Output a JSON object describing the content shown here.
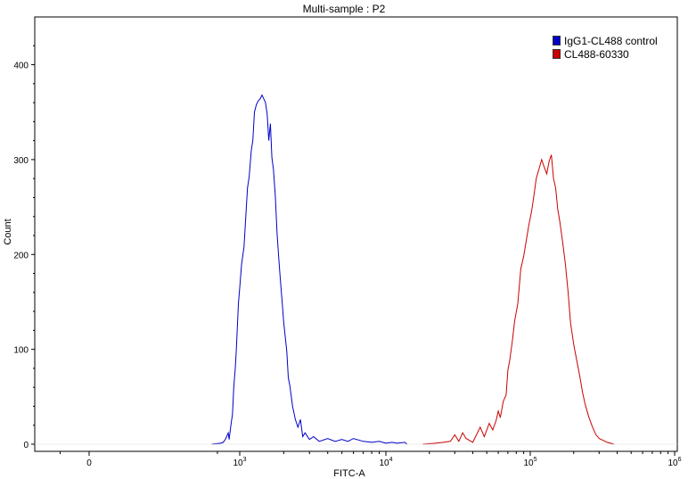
{
  "chart_data": {
    "type": "line",
    "title": "Multi-sample : P2",
    "xlabel": "FITC-A",
    "ylabel": "Count",
    "xscale": "biexponential",
    "xlim": [
      -1200,
      1000000
    ],
    "ylim": [
      0,
      440
    ],
    "x_ticks": [
      {
        "value": 0,
        "label": "0",
        "exp": ""
      },
      {
        "value": 1000,
        "label": "10",
        "exp": "3"
      },
      {
        "value": 10000,
        "label": "10",
        "exp": "4"
      },
      {
        "value": 100000,
        "label": "10",
        "exp": "5"
      },
      {
        "value": 1000000,
        "label": "10",
        "exp": "6"
      }
    ],
    "y_ticks": [
      0,
      100,
      200,
      300,
      400
    ],
    "grid": false,
    "legend_position": "top-right",
    "series": [
      {
        "name": "IgG1-CL488 control",
        "color": "#0000c8",
        "points": [
          [
            420,
            0
          ],
          [
            550,
            1
          ],
          [
            600,
            2
          ],
          [
            650,
            6
          ],
          [
            700,
            12
          ],
          [
            720,
            5
          ],
          [
            760,
            20
          ],
          [
            800,
            32
          ],
          [
            830,
            60
          ],
          [
            870,
            80
          ],
          [
            900,
            100
          ],
          [
            930,
            125
          ],
          [
            960,
            148
          ],
          [
            1000,
            165
          ],
          [
            1030,
            190
          ],
          [
            1070,
            208
          ],
          [
            1100,
            240
          ],
          [
            1130,
            270
          ],
          [
            1160,
            282
          ],
          [
            1200,
            310
          ],
          [
            1230,
            320
          ],
          [
            1260,
            350
          ],
          [
            1300,
            358
          ],
          [
            1340,
            362
          ],
          [
            1380,
            364
          ],
          [
            1420,
            368
          ],
          [
            1460,
            364
          ],
          [
            1500,
            360
          ],
          [
            1540,
            348
          ],
          [
            1580,
            320
          ],
          [
            1620,
            338
          ],
          [
            1660,
            302
          ],
          [
            1700,
            290
          ],
          [
            1750,
            262
          ],
          [
            1800,
            222
          ],
          [
            1850,
            196
          ],
          [
            1900,
            172
          ],
          [
            1950,
            150
          ],
          [
            2000,
            128
          ],
          [
            2100,
            98
          ],
          [
            2150,
            70
          ],
          [
            2200,
            62
          ],
          [
            2300,
            40
          ],
          [
            2400,
            26
          ],
          [
            2500,
            18
          ],
          [
            2600,
            26
          ],
          [
            2700,
            8
          ],
          [
            2800,
            12
          ],
          [
            3000,
            5
          ],
          [
            3200,
            8
          ],
          [
            3500,
            3
          ],
          [
            4000,
            6
          ],
          [
            4500,
            3
          ],
          [
            5000,
            5
          ],
          [
            5500,
            3
          ],
          [
            6000,
            6
          ],
          [
            7000,
            3
          ],
          [
            8000,
            2
          ],
          [
            9000,
            3
          ],
          [
            10000,
            1
          ],
          [
            11000,
            2
          ],
          [
            12000,
            1
          ],
          [
            13500,
            2
          ],
          [
            14000,
            0
          ]
        ]
      },
      {
        "name": "CL488-60330",
        "color": "#cc0000",
        "points": [
          [
            18000,
            0
          ],
          [
            22000,
            1
          ],
          [
            25000,
            2
          ],
          [
            28000,
            3
          ],
          [
            30000,
            10
          ],
          [
            32000,
            3
          ],
          [
            34000,
            12
          ],
          [
            36000,
            6
          ],
          [
            40000,
            2
          ],
          [
            45000,
            18
          ],
          [
            48000,
            8
          ],
          [
            52000,
            22
          ],
          [
            55000,
            15
          ],
          [
            58000,
            25
          ],
          [
            60000,
            35
          ],
          [
            62000,
            28
          ],
          [
            65000,
            45
          ],
          [
            68000,
            52
          ],
          [
            70000,
            78
          ],
          [
            72000,
            88
          ],
          [
            75000,
            108
          ],
          [
            78000,
            130
          ],
          [
            82000,
            148
          ],
          [
            86000,
            185
          ],
          [
            90000,
            198
          ],
          [
            94000,
            215
          ],
          [
            98000,
            232
          ],
          [
            102000,
            245
          ],
          [
            106000,
            262
          ],
          [
            110000,
            280
          ],
          [
            115000,
            290
          ],
          [
            120000,
            300
          ],
          [
            125000,
            292
          ],
          [
            130000,
            285
          ],
          [
            135000,
            298
          ],
          [
            140000,
            305
          ],
          [
            145000,
            280
          ],
          [
            150000,
            270
          ],
          [
            155000,
            248
          ],
          [
            160000,
            235
          ],
          [
            168000,
            212
          ],
          [
            175000,
            190
          ],
          [
            183000,
            160
          ],
          [
            190000,
            128
          ],
          [
            200000,
            105
          ],
          [
            210000,
            88
          ],
          [
            220000,
            72
          ],
          [
            230000,
            55
          ],
          [
            240000,
            42
          ],
          [
            255000,
            28
          ],
          [
            270000,
            18
          ],
          [
            285000,
            10
          ],
          [
            300000,
            6
          ],
          [
            320000,
            4
          ],
          [
            340000,
            2
          ],
          [
            360000,
            1
          ],
          [
            380000,
            0
          ]
        ]
      }
    ]
  }
}
